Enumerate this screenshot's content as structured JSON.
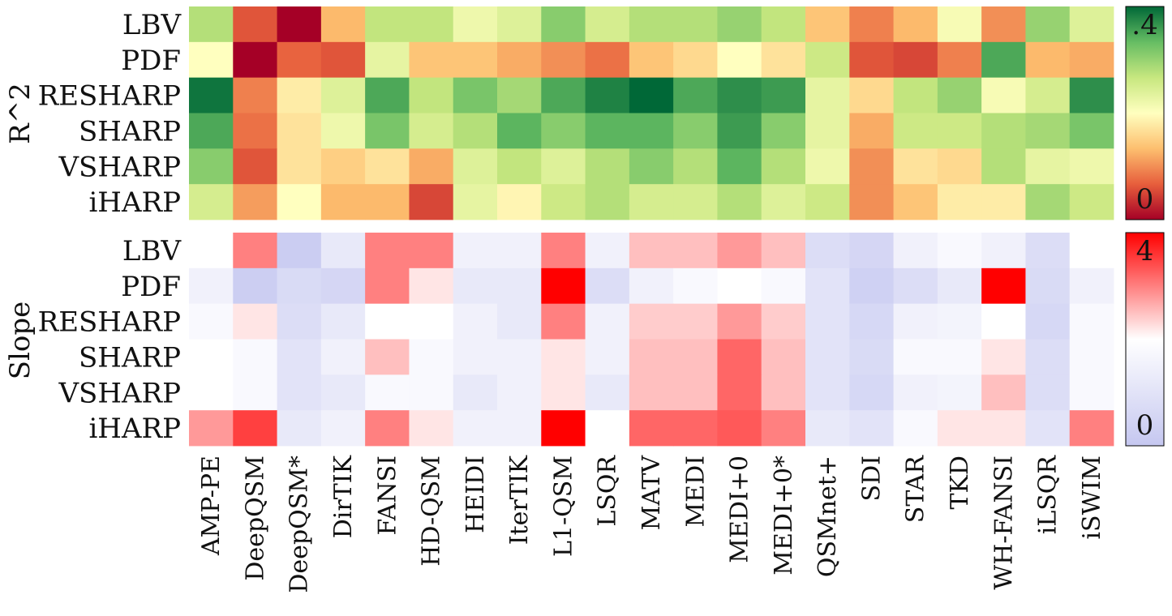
{
  "chart_data": [
    {
      "type": "heatmap",
      "title": "",
      "ylabel": "R^2",
      "rows": [
        "LBV",
        "PDF",
        "RESHARP",
        "SHARP",
        "VSHARP",
        "iHARP"
      ],
      "columns": [
        "AMP-PE",
        "DeepQSM",
        "DeepQSM*",
        "DirTIK",
        "FANSI",
        "HD-QSM",
        "HEIDI",
        "IterTIK",
        "L1-QSM",
        "LSQR",
        "MATV",
        "MEDI",
        "MEDI+0",
        "MEDI+0*",
        "QSMnet+",
        "SDI",
        "STAR",
        "TKD",
        "WH-FANSI",
        "iLSQR",
        "iSWIM"
      ],
      "values": [
        [
          0.28,
          0.06,
          0.0,
          0.13,
          0.27,
          0.27,
          0.22,
          0.24,
          0.31,
          0.25,
          0.28,
          0.28,
          0.3,
          0.27,
          0.14,
          0.09,
          0.13,
          0.21,
          0.1,
          0.3,
          0.24
        ],
        [
          0.2,
          0.0,
          0.07,
          0.06,
          0.23,
          0.14,
          0.14,
          0.12,
          0.1,
          0.08,
          0.14,
          0.16,
          0.2,
          0.17,
          0.26,
          0.06,
          0.05,
          0.09,
          0.35,
          0.13,
          0.12
        ],
        [
          0.39,
          0.09,
          0.18,
          0.24,
          0.35,
          0.27,
          0.32,
          0.29,
          0.35,
          0.38,
          0.4,
          0.35,
          0.37,
          0.36,
          0.23,
          0.16,
          0.27,
          0.3,
          0.21,
          0.25,
          0.37
        ],
        [
          0.35,
          0.08,
          0.17,
          0.22,
          0.32,
          0.25,
          0.28,
          0.34,
          0.31,
          0.34,
          0.34,
          0.31,
          0.36,
          0.31,
          0.23,
          0.12,
          0.26,
          0.26,
          0.28,
          0.29,
          0.32
        ],
        [
          0.31,
          0.06,
          0.17,
          0.15,
          0.17,
          0.12,
          0.24,
          0.27,
          0.24,
          0.28,
          0.31,
          0.28,
          0.34,
          0.28,
          0.22,
          0.1,
          0.17,
          0.16,
          0.28,
          0.23,
          0.22
        ],
        [
          0.25,
          0.11,
          0.2,
          0.13,
          0.13,
          0.05,
          0.23,
          0.19,
          0.26,
          0.28,
          0.25,
          0.25,
          0.28,
          0.24,
          0.26,
          0.1,
          0.14,
          0.18,
          0.18,
          0.29,
          0.26
        ]
      ],
      "colorscale": [
        "#a50026",
        "#e75e3c",
        "#fdbf6f",
        "#ffffbf",
        "#c7e77f",
        "#66bd63",
        "#006837"
      ],
      "zlim": [
        0,
        0.4
      ],
      "colorbar": {
        "ticks": [
          ".4",
          "0"
        ]
      }
    },
    {
      "type": "heatmap",
      "title": "",
      "ylabel": "Slope",
      "rows": [
        "LBV",
        "PDF",
        "RESHARP",
        "SHARP",
        "VSHARP",
        "iHARP"
      ],
      "columns": [
        "AMP-PE",
        "DeepQSM",
        "DeepQSM*",
        "DirTIK",
        "FANSI",
        "HD-QSM",
        "HEIDI",
        "IterTIK",
        "L1-QSM",
        "LSQR",
        "MATV",
        "MEDI",
        "MEDI+0",
        "MEDI+0*",
        "QSMnet+",
        "SDI",
        "STAR",
        "TKD",
        "WH-FANSI",
        "iLSQR",
        "iSWIM"
      ],
      "values": [
        [
          2.0,
          3.0,
          0.2,
          1.2,
          3.0,
          3.0,
          1.5,
          1.5,
          3.0,
          1.5,
          2.5,
          2.5,
          2.8,
          2.5,
          0.8,
          0.55,
          1.5,
          1.8,
          1.5,
          0.8,
          2.0
        ],
        [
          1.5,
          0.25,
          0.7,
          0.55,
          3.0,
          2.2,
          1.2,
          1.2,
          4.0,
          0.8,
          1.5,
          1.8,
          2.0,
          1.8,
          1.0,
          0.35,
          0.8,
          1.2,
          4.0,
          0.7,
          1.5
        ],
        [
          1.8,
          2.2,
          0.8,
          1.2,
          2.0,
          2.0,
          1.5,
          1.2,
          3.0,
          1.5,
          2.4,
          2.4,
          2.8,
          2.4,
          1.0,
          0.6,
          1.5,
          1.6,
          2.0,
          0.6,
          1.8
        ],
        [
          2.0,
          1.8,
          1.0,
          1.5,
          2.5,
          1.8,
          1.5,
          1.5,
          2.2,
          1.5,
          2.5,
          2.5,
          3.2,
          2.5,
          1.0,
          0.7,
          1.8,
          1.8,
          2.2,
          0.8,
          1.8
        ],
        [
          2.0,
          1.8,
          1.0,
          1.2,
          1.8,
          1.8,
          1.2,
          1.5,
          2.2,
          1.2,
          2.5,
          2.5,
          3.2,
          2.5,
          1.0,
          0.6,
          1.5,
          1.6,
          2.5,
          0.8,
          1.8
        ],
        [
          2.8,
          3.5,
          1.2,
          1.5,
          3.0,
          2.2,
          1.5,
          1.5,
          4.0,
          2.0,
          3.2,
          3.2,
          3.3,
          3.0,
          1.2,
          1.0,
          1.8,
          2.2,
          2.2,
          1.0,
          3.0
        ]
      ],
      "colorscale": [
        "#c5c7f0",
        "#ffffff",
        "#ff0000"
      ],
      "zlim": [
        0,
        4
      ],
      "colorbar": {
        "ticks": [
          "4",
          "0"
        ]
      }
    }
  ]
}
